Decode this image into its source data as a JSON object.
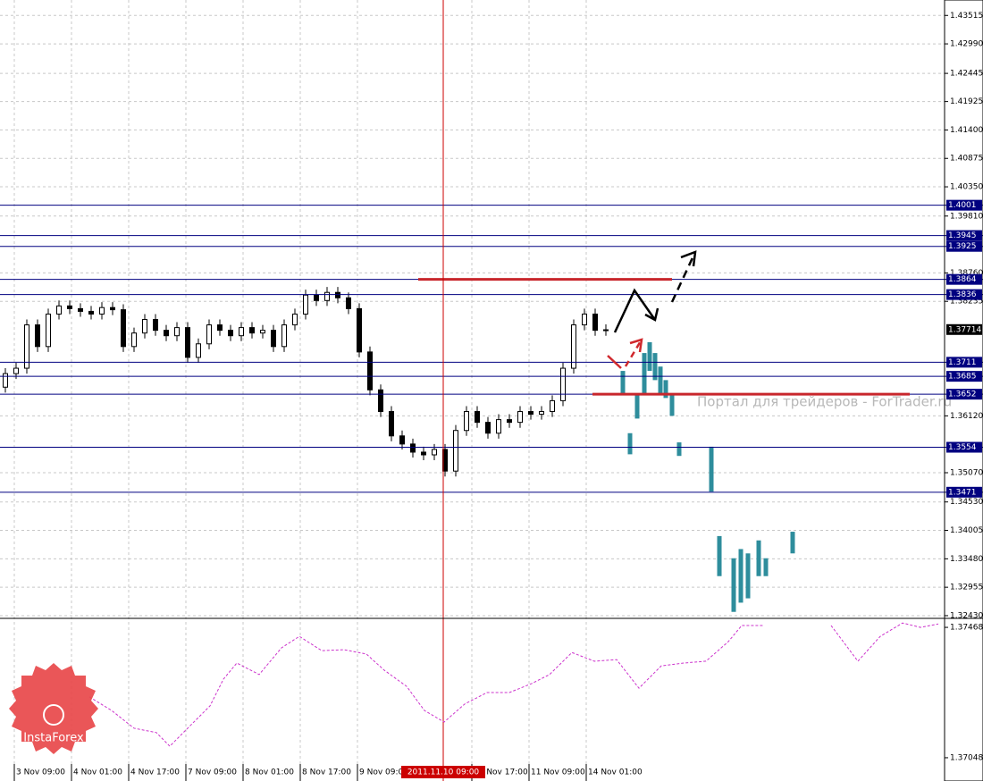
{
  "chart_data": [
    {
      "type": "candlestick",
      "x": [
        1.5,
        4.5,
        7.5,
        10.5,
        13.5,
        16.5,
        19.5,
        22.5,
        25.5,
        28.5,
        31.5,
        34.5,
        37.5,
        40.5,
        43.5,
        46.5,
        49.5,
        52.5,
        55.5,
        58.5,
        61.5,
        64.5,
        67.5,
        70.5,
        73.5,
        76.5,
        79.5,
        82.5,
        85.5,
        88.5,
        91.5,
        94.5,
        97.5,
        100.5,
        103.5,
        106.5,
        109.5,
        112.5,
        115.5,
        118.5,
        121.5,
        124.5,
        127.5,
        130.5,
        133.5,
        136.5,
        139.5,
        142.5,
        145.5,
        148.5,
        151.5,
        154.5,
        157.5,
        160.5,
        163.5,
        166.5,
        169.5
      ],
      "open": [
        1.3665,
        1.369,
        1.37,
        1.378,
        1.374,
        1.38,
        1.3815,
        1.381,
        1.3805,
        1.38,
        1.3812,
        1.3808,
        1.374,
        1.3765,
        1.379,
        1.377,
        1.376,
        1.3775,
        1.372,
        1.3745,
        1.378,
        1.377,
        1.376,
        1.3775,
        1.3765,
        1.377,
        1.374,
        1.378,
        1.38,
        1.3835,
        1.3825,
        1.384,
        1.383,
        1.381,
        1.373,
        1.366,
        1.362,
        1.3575,
        1.356,
        1.3545,
        1.354,
        1.355,
        1.351,
        1.3585,
        1.362,
        1.36,
        1.358,
        1.3605,
        1.36,
        1.362,
        1.3615,
        1.362,
        1.364,
        1.37,
        1.378,
        1.38,
        1.377
      ],
      "high": [
        1.37,
        1.371,
        1.379,
        1.379,
        1.381,
        1.3825,
        1.3825,
        1.382,
        1.3815,
        1.3822,
        1.3822,
        1.3818,
        1.3775,
        1.38,
        1.38,
        1.378,
        1.3785,
        1.3785,
        1.3755,
        1.379,
        1.379,
        1.378,
        1.3785,
        1.3785,
        1.378,
        1.378,
        1.379,
        1.381,
        1.3845,
        1.3845,
        1.385,
        1.385,
        1.384,
        1.382,
        1.374,
        1.367,
        1.363,
        1.3585,
        1.357,
        1.3555,
        1.356,
        1.356,
        1.3595,
        1.363,
        1.363,
        1.361,
        1.3615,
        1.3615,
        1.363,
        1.363,
        1.363,
        1.365,
        1.371,
        1.379,
        1.381,
        1.381,
        1.3781
      ],
      "low": [
        1.3655,
        1.368,
        1.369,
        1.373,
        1.373,
        1.379,
        1.38,
        1.3795,
        1.379,
        1.379,
        1.3798,
        1.373,
        1.373,
        1.3755,
        1.376,
        1.375,
        1.375,
        1.371,
        1.371,
        1.3735,
        1.376,
        1.375,
        1.375,
        1.3755,
        1.3755,
        1.373,
        1.373,
        1.377,
        1.379,
        1.3815,
        1.3815,
        1.382,
        1.38,
        1.372,
        1.365,
        1.361,
        1.3565,
        1.355,
        1.3535,
        1.353,
        1.353,
        1.35,
        1.35,
        1.3575,
        1.359,
        1.357,
        1.357,
        1.359,
        1.359,
        1.3605,
        1.3605,
        1.361,
        1.363,
        1.369,
        1.377,
        1.376,
        1.376
      ],
      "close": [
        1.369,
        1.37,
        1.378,
        1.374,
        1.38,
        1.3815,
        1.381,
        1.3805,
        1.38,
        1.3812,
        1.3808,
        1.374,
        1.3765,
        1.379,
        1.377,
        1.376,
        1.3775,
        1.372,
        1.3745,
        1.378,
        1.377,
        1.376,
        1.3775,
        1.3765,
        1.377,
        1.374,
        1.378,
        1.38,
        1.3835,
        1.3825,
        1.384,
        1.383,
        1.381,
        1.373,
        1.366,
        1.362,
        1.3575,
        1.356,
        1.3545,
        1.354,
        1.355,
        1.351,
        1.3585,
        1.362,
        1.36,
        1.358,
        1.3605,
        1.36,
        1.362,
        1.3615,
        1.362,
        1.364,
        1.37,
        1.378,
        1.38,
        1.377,
        1.3771
      ],
      "color": "#000000",
      "xlim": [
        0,
        264.25
      ],
      "ylim": [
        1.3238,
        1.438
      ],
      "yticks": [
        1.43515,
        {
          "value": 1.4299,
          "label": "1.42990"
        },
        1.42445,
        1.41925,
        {
          "value": 1.414,
          "label": "1.41400"
        },
        1.40875,
        {
          "value": 1.4035,
          "label": "1.40350"
        },
        {
          "value": 1.3981,
          "label": "1.39810"
        },
        {
          "value": 1.3876,
          "label": "1.38760"
        },
        1.38235,
        {
          "value": 1.3612,
          "label": "1.36120"
        },
        {
          "value": 1.3507,
          "label": "1.35070"
        },
        {
          "value": 1.3453,
          "label": "1.34530"
        },
        1.34005,
        {
          "value": 1.3348,
          "label": "1.33480"
        },
        1.32955,
        {
          "value": 1.3243,
          "label": "1.32430"
        }
      ],
      "xticks": [
        {
          "value": 4,
          "label": "3 Nov 09:00"
        },
        {
          "value": 20,
          "label": "4 Nov 01:00"
        },
        {
          "value": 36,
          "label": "4 Nov 17:00"
        },
        {
          "value": 52,
          "label": "7 Nov 09:00"
        },
        {
          "value": 68,
          "label": "8 Nov 01:00"
        },
        {
          "value": 84,
          "label": "8 Nov 17:00"
        },
        {
          "value": 100,
          "label": "9 Nov 09:00"
        },
        {
          "value": 132,
          "label": "10 Nov 17:00"
        },
        {
          "value": 148,
          "label": "11 Nov 09:00"
        },
        {
          "value": 164,
          "label": "14 Nov 01:00"
        }
      ],
      "grid": true,
      "forecast": {
        "color": "#2e8d9c",
        "x": [
          174.25,
          176.25,
          178.25,
          180.25,
          181.75,
          183.25,
          184.75,
          186.25,
          188,
          190,
          199,
          201.25,
          205.25,
          207.25,
          209.25,
          212.25,
          214.25,
          221.75
        ],
        "high": [
          1.3695,
          1.358,
          1.3653,
          1.3728,
          1.3748,
          1.3728,
          1.3703,
          1.3678,
          1.3653,
          1.3563,
          1.3555,
          1.339,
          1.3349,
          1.3366,
          1.3358,
          1.3382,
          1.3349,
          1.3398
        ],
        "low": [
          1.3653,
          1.3541,
          1.3607,
          1.3653,
          1.3695,
          1.3678,
          1.3653,
          1.3645,
          1.3612,
          1.3538,
          1.3472,
          1.3316,
          1.325,
          1.3267,
          1.3275,
          1.3316,
          1.3316,
          1.3358
        ]
      },
      "levels": {
        "color": "#000080",
        "values": [
          1.4001,
          1.3945,
          1.3925,
          1.3864,
          1.3836,
          1.3711,
          1.3685,
          1.3652,
          1.3554,
          1.3471
        ]
      },
      "red_lines": {
        "color": "#c8262c",
        "values": [
          1.3864,
          1.3652
        ],
        "x_start": [
          117,
          165.75
        ],
        "x_end": [
          188,
          254.5
        ]
      },
      "current_price": 1.37714,
      "cursor": {
        "x": 124,
        "label": "2011.11.10 09:00",
        "color": "#cc0000"
      },
      "watermark": "Портал для трейдеров - ForTrader.ru",
      "logo": "InstaForex"
    },
    {
      "type": "line",
      "x": [
        25,
        31.25,
        37.5,
        43.75,
        47.5,
        52.5,
        58.75,
        62.5,
        66.25,
        72.5,
        78.75,
        83.75,
        90,
        96.25,
        102.5,
        107.5,
        113.75,
        118.75,
        124.25,
        130,
        136.25,
        142.5,
        148.75,
        153.75,
        160,
        166.25,
        172.5,
        178.75,
        185,
        191.25,
        197.5,
        203.75,
        207.5,
        213.75,
        220,
        232.5,
        240,
        246.25,
        252.5,
        257.5,
        262.5
      ],
      "series": [
        {
          "color": "#cc33cc",
          "values": [
            1.37244,
            1.372,
            1.37143,
            1.37129,
            1.37085,
            1.37143,
            1.37215,
            1.37301,
            1.37353,
            1.37316,
            1.37402,
            1.37439,
            1.37393,
            1.37396,
            1.37382,
            1.3733,
            1.37278,
            1.372,
            1.37163,
            1.37221,
            1.37258,
            1.37258,
            1.37287,
            1.37316,
            1.37387,
            1.37359,
            1.37364,
            1.37272,
            1.37344,
            1.37353,
            1.37359,
            1.37422,
            1.37474,
            1.37474,
            null,
            1.37474,
            1.37359,
            1.37439,
            1.37482,
            1.37468,
            1.37479
          ]
        }
      ],
      "ylim": [
        1.36973,
        1.37497
      ],
      "yticks": [
        1.37468,
        1.37048
      ]
    }
  ]
}
